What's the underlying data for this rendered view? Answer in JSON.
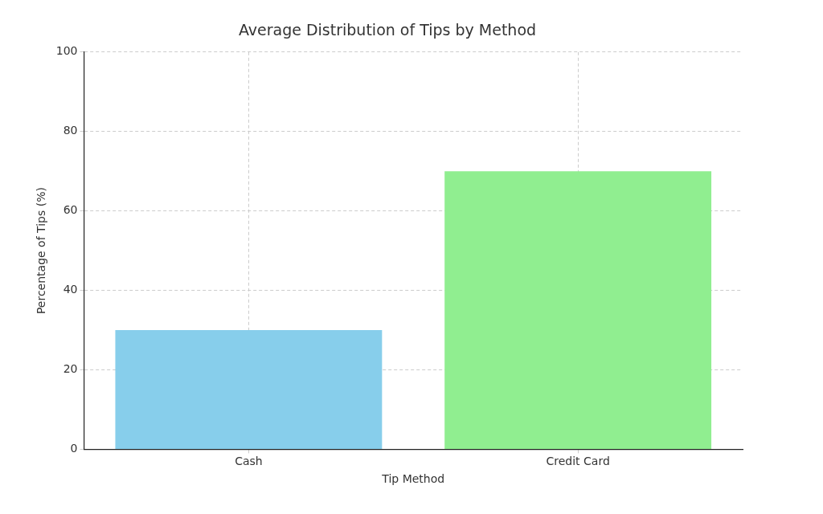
{
  "chart_data": {
    "type": "bar",
    "title": "Average Distribution of Tips by Method",
    "x_label": "Tip Method",
    "y_label": "Percentage of Tips (%)",
    "categories": [
      "Cash",
      "Credit Card"
    ],
    "values": [
      30,
      70
    ],
    "colors": [
      "#87ceeb",
      "#90ee90"
    ],
    "ylim": [
      0,
      100
    ],
    "yticks": [
      0,
      20,
      40,
      60,
      80,
      100
    ],
    "grid": true
  }
}
